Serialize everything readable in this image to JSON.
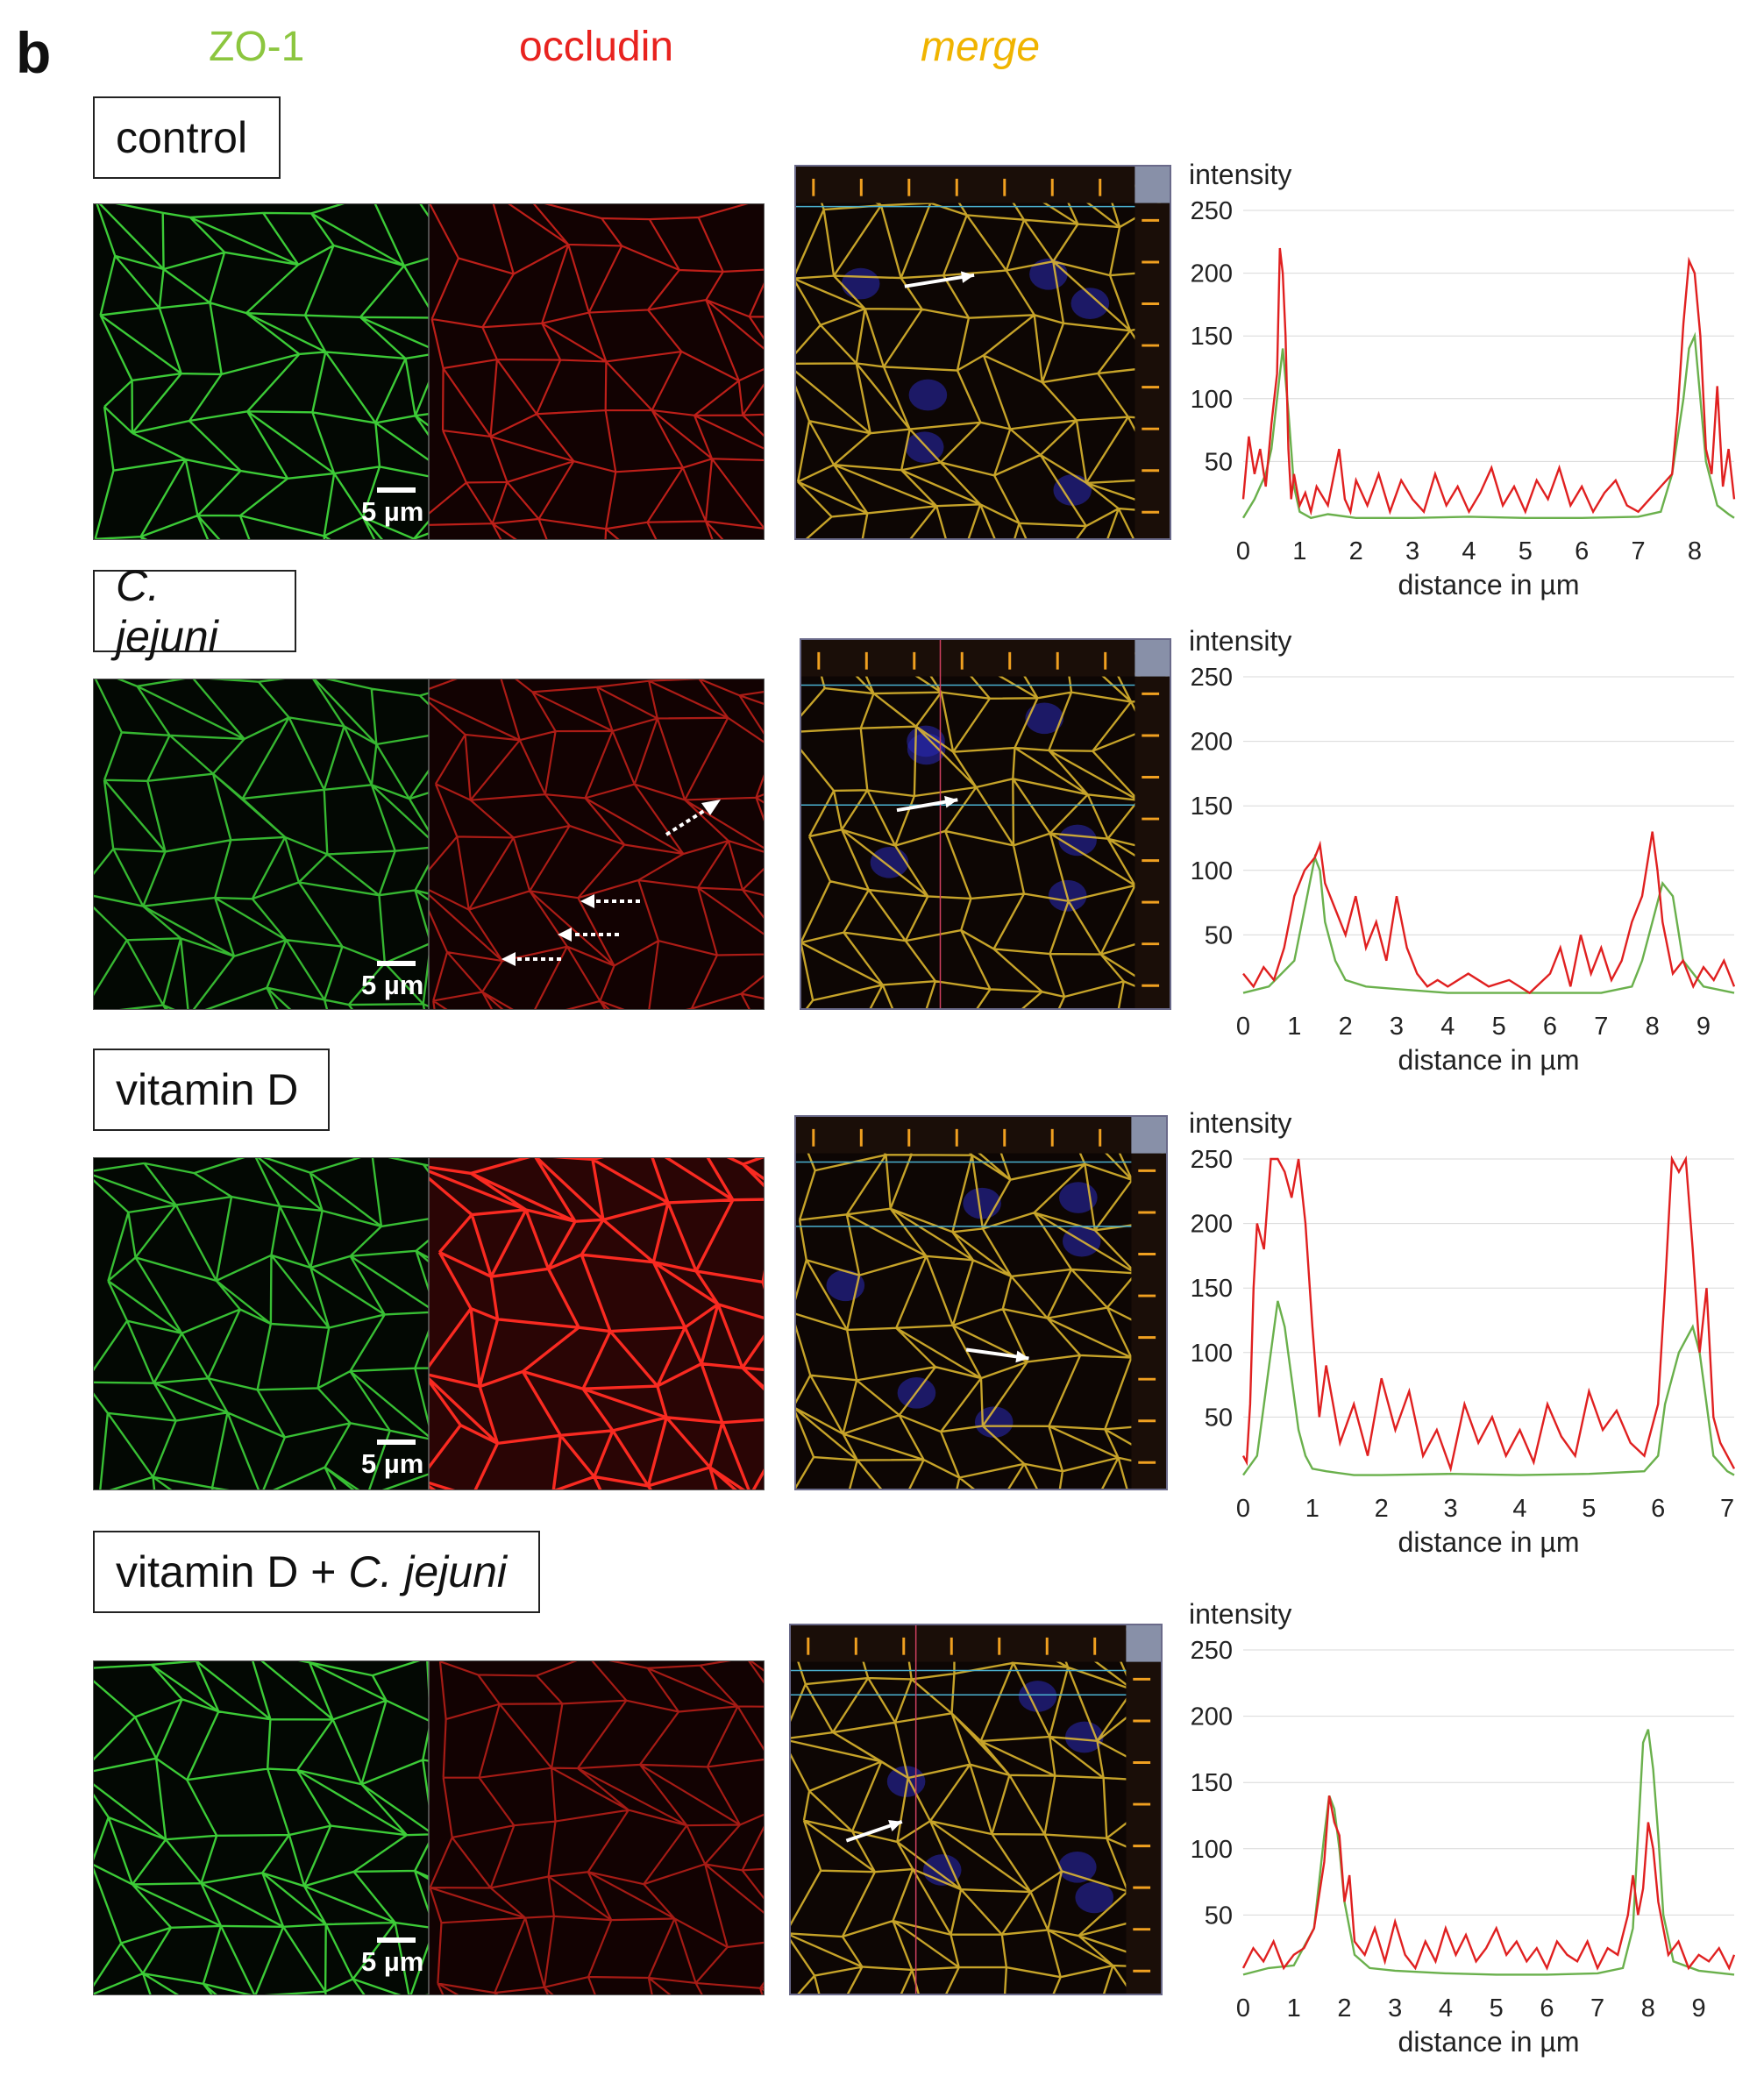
{
  "panel_letter": "b",
  "channels": {
    "zo1": "ZO-1",
    "occludin": "occludin",
    "merge": "merge"
  },
  "colors": {
    "zo1": "#8cc63f",
    "occludin": "#e8231f",
    "merge": "#f0b400"
  },
  "conditions": [
    {
      "label": "control",
      "scale": "5 µm"
    },
    {
      "label": "C. jejuni",
      "scale": "5 µm"
    },
    {
      "label": "vitamin D",
      "scale": "5 µm"
    },
    {
      "label_plain": "vitamin D + ",
      "label_italic": "C. jejuni",
      "scale": "5 µm"
    }
  ],
  "chart_data": [
    {
      "type": "line",
      "title": "",
      "ylabel": "intensity",
      "xlabel": "distance in µm",
      "ylim": [
        0,
        250
      ],
      "xlim": [
        0,
        8.7
      ],
      "yticks": [
        50,
        100,
        150,
        200,
        250
      ],
      "xticks": [
        0,
        1,
        2,
        3,
        4,
        5,
        6,
        7,
        8
      ],
      "grid": true,
      "series": [
        {
          "color": "#e02020",
          "x": [
            0,
            0.1,
            0.2,
            0.3,
            0.4,
            0.5,
            0.6,
            0.65,
            0.7,
            0.75,
            0.8,
            0.85,
            0.9,
            1.0,
            1.1,
            1.2,
            1.3,
            1.5,
            1.7,
            1.8,
            1.9,
            2.0,
            2.2,
            2.4,
            2.6,
            2.8,
            3.0,
            3.2,
            3.4,
            3.6,
            3.8,
            4.0,
            4.2,
            4.4,
            4.6,
            4.8,
            5.0,
            5.2,
            5.4,
            5.6,
            5.8,
            6.0,
            6.2,
            6.4,
            6.6,
            6.8,
            7.0,
            7.2,
            7.4,
            7.6,
            7.7,
            7.8,
            7.9,
            8.0,
            8.1,
            8.2,
            8.3,
            8.4,
            8.5,
            8.6,
            8.7
          ],
          "y": [
            20,
            70,
            40,
            60,
            30,
            80,
            120,
            220,
            200,
            150,
            60,
            20,
            40,
            15,
            25,
            10,
            30,
            15,
            60,
            20,
            10,
            35,
            15,
            40,
            10,
            35,
            20,
            10,
            40,
            15,
            30,
            10,
            25,
            45,
            15,
            30,
            10,
            35,
            20,
            45,
            15,
            30,
            10,
            25,
            35,
            15,
            10,
            20,
            30,
            40,
            90,
            160,
            210,
            200,
            150,
            60,
            40,
            110,
            30,
            60,
            20
          ]
        },
        {
          "color": "#6ab04c",
          "x": [
            0,
            0.2,
            0.4,
            0.5,
            0.6,
            0.7,
            0.8,
            0.9,
            1.0,
            1.2,
            1.5,
            2.0,
            3.0,
            4.0,
            5.0,
            6.0,
            7.0,
            7.4,
            7.6,
            7.8,
            7.9,
            8.0,
            8.1,
            8.2,
            8.4,
            8.6,
            8.7
          ],
          "y": [
            5,
            20,
            40,
            60,
            100,
            140,
            90,
            30,
            10,
            5,
            8,
            5,
            5,
            6,
            5,
            5,
            6,
            10,
            40,
            100,
            140,
            150,
            100,
            50,
            15,
            8,
            5
          ]
        }
      ]
    },
    {
      "type": "line",
      "title": "",
      "ylabel": "intensity",
      "xlabel": "distance in µm",
      "ylim": [
        0,
        250
      ],
      "xlim": [
        0,
        9.6
      ],
      "yticks": [
        50,
        100,
        150,
        200,
        250
      ],
      "xticks": [
        0,
        1,
        2,
        3,
        4,
        5,
        6,
        7,
        8,
        9
      ],
      "grid": true,
      "series": [
        {
          "color": "#e02020",
          "x": [
            0,
            0.2,
            0.4,
            0.6,
            0.8,
            1.0,
            1.2,
            1.4,
            1.5,
            1.6,
            1.8,
            2.0,
            2.2,
            2.4,
            2.6,
            2.8,
            3.0,
            3.2,
            3.4,
            3.6,
            3.8,
            4.0,
            4.4,
            4.8,
            5.2,
            5.6,
            6.0,
            6.2,
            6.4,
            6.6,
            6.8,
            7.0,
            7.2,
            7.4,
            7.6,
            7.8,
            8.0,
            8.1,
            8.2,
            8.4,
            8.6,
            8.8,
            9.0,
            9.2,
            9.4,
            9.6
          ],
          "y": [
            20,
            10,
            25,
            15,
            40,
            80,
            100,
            110,
            120,
            90,
            70,
            50,
            80,
            40,
            60,
            30,
            80,
            40,
            20,
            10,
            15,
            10,
            20,
            10,
            15,
            5,
            20,
            40,
            10,
            50,
            20,
            40,
            15,
            30,
            60,
            80,
            130,
            100,
            60,
            20,
            30,
            10,
            25,
            15,
            30,
            10
          ]
        },
        {
          "color": "#6ab04c",
          "x": [
            0,
            0.5,
            1.0,
            1.2,
            1.4,
            1.5,
            1.6,
            1.8,
            2.0,
            2.4,
            3.0,
            4.0,
            5.0,
            6.0,
            7.0,
            7.6,
            7.8,
            8.0,
            8.2,
            8.4,
            8.6,
            9.0,
            9.6
          ],
          "y": [
            5,
            10,
            30,
            70,
            110,
            100,
            60,
            30,
            15,
            10,
            8,
            5,
            5,
            5,
            5,
            10,
            30,
            60,
            90,
            80,
            30,
            10,
            5
          ]
        }
      ]
    },
    {
      "type": "line",
      "title": "",
      "ylabel": "intensity",
      "xlabel": "distance in µm",
      "ylim": [
        0,
        250
      ],
      "xlim": [
        0,
        7.1
      ],
      "yticks": [
        50,
        100,
        150,
        200,
        250
      ],
      "xticks": [
        0,
        1,
        2,
        3,
        4,
        5,
        6,
        7
      ],
      "grid": true,
      "series": [
        {
          "color": "#e02020",
          "x": [
            0,
            0.05,
            0.1,
            0.15,
            0.2,
            0.3,
            0.4,
            0.5,
            0.6,
            0.7,
            0.8,
            0.9,
            1.0,
            1.1,
            1.2,
            1.4,
            1.6,
            1.8,
            2.0,
            2.2,
            2.4,
            2.6,
            2.8,
            3.0,
            3.2,
            3.4,
            3.6,
            3.8,
            4.0,
            4.2,
            4.4,
            4.6,
            4.8,
            5.0,
            5.2,
            5.4,
            5.6,
            5.8,
            6.0,
            6.1,
            6.2,
            6.3,
            6.4,
            6.5,
            6.6,
            6.7,
            6.8,
            6.9,
            7.0,
            7.1
          ],
          "y": [
            20,
            15,
            60,
            150,
            200,
            180,
            250,
            250,
            240,
            220,
            250,
            200,
            120,
            50,
            90,
            30,
            60,
            20,
            80,
            40,
            70,
            20,
            40,
            10,
            60,
            30,
            50,
            20,
            40,
            15,
            60,
            35,
            20,
            70,
            40,
            55,
            30,
            20,
            60,
            150,
            250,
            240,
            250,
            180,
            100,
            150,
            50,
            30,
            20,
            10
          ]
        },
        {
          "color": "#6ab04c",
          "x": [
            0,
            0.2,
            0.3,
            0.4,
            0.5,
            0.6,
            0.7,
            0.8,
            0.9,
            1.0,
            1.2,
            1.6,
            2.0,
            3.0,
            4.0,
            5.0,
            5.8,
            6.0,
            6.1,
            6.2,
            6.3,
            6.4,
            6.5,
            6.6,
            6.7,
            6.8,
            7.0,
            7.1
          ],
          "y": [
            5,
            20,
            60,
            100,
            140,
            120,
            80,
            40,
            20,
            10,
            8,
            5,
            5,
            6,
            5,
            6,
            8,
            20,
            60,
            80,
            100,
            110,
            120,
            100,
            60,
            20,
            8,
            5
          ]
        }
      ]
    },
    {
      "type": "line",
      "title": "",
      "ylabel": "intensity",
      "xlabel": "distance in µm",
      "ylim": [
        0,
        250
      ],
      "xlim": [
        0,
        9.7
      ],
      "yticks": [
        50,
        100,
        150,
        200,
        250
      ],
      "xticks": [
        0,
        1,
        2,
        3,
        4,
        5,
        6,
        7,
        8,
        9
      ],
      "grid": true,
      "series": [
        {
          "color": "#e02020",
          "x": [
            0,
            0.2,
            0.4,
            0.6,
            0.8,
            1.0,
            1.2,
            1.4,
            1.6,
            1.7,
            1.8,
            1.9,
            2.0,
            2.1,
            2.2,
            2.4,
            2.6,
            2.8,
            3.0,
            3.2,
            3.4,
            3.6,
            3.8,
            4.0,
            4.2,
            4.4,
            4.6,
            4.8,
            5.0,
            5.2,
            5.4,
            5.6,
            5.8,
            6.0,
            6.2,
            6.4,
            6.6,
            6.8,
            7.0,
            7.2,
            7.4,
            7.6,
            7.7,
            7.8,
            7.9,
            8.0,
            8.1,
            8.2,
            8.4,
            8.6,
            8.8,
            9.0,
            9.2,
            9.4,
            9.6,
            9.7
          ],
          "y": [
            10,
            25,
            15,
            30,
            10,
            20,
            25,
            40,
            90,
            140,
            120,
            110,
            60,
            80,
            30,
            20,
            40,
            15,
            45,
            20,
            10,
            30,
            15,
            40,
            20,
            35,
            15,
            25,
            40,
            20,
            30,
            15,
            25,
            10,
            30,
            20,
            15,
            30,
            10,
            25,
            20,
            50,
            80,
            50,
            70,
            120,
            100,
            60,
            20,
            30,
            10,
            20,
            15,
            25,
            10,
            20
          ]
        },
        {
          "color": "#6ab04c",
          "x": [
            0,
            0.5,
            1.0,
            1.4,
            1.6,
            1.7,
            1.8,
            1.9,
            2.0,
            2.2,
            2.5,
            3.0,
            4.0,
            5.0,
            6.0,
            7.0,
            7.5,
            7.7,
            7.8,
            7.9,
            8.0,
            8.1,
            8.2,
            8.3,
            8.5,
            9.0,
            9.7
          ],
          "y": [
            5,
            10,
            12,
            40,
            110,
            140,
            130,
            100,
            60,
            20,
            10,
            8,
            6,
            5,
            5,
            6,
            10,
            40,
            110,
            180,
            190,
            160,
            110,
            50,
            15,
            8,
            5
          ]
        }
      ]
    }
  ]
}
